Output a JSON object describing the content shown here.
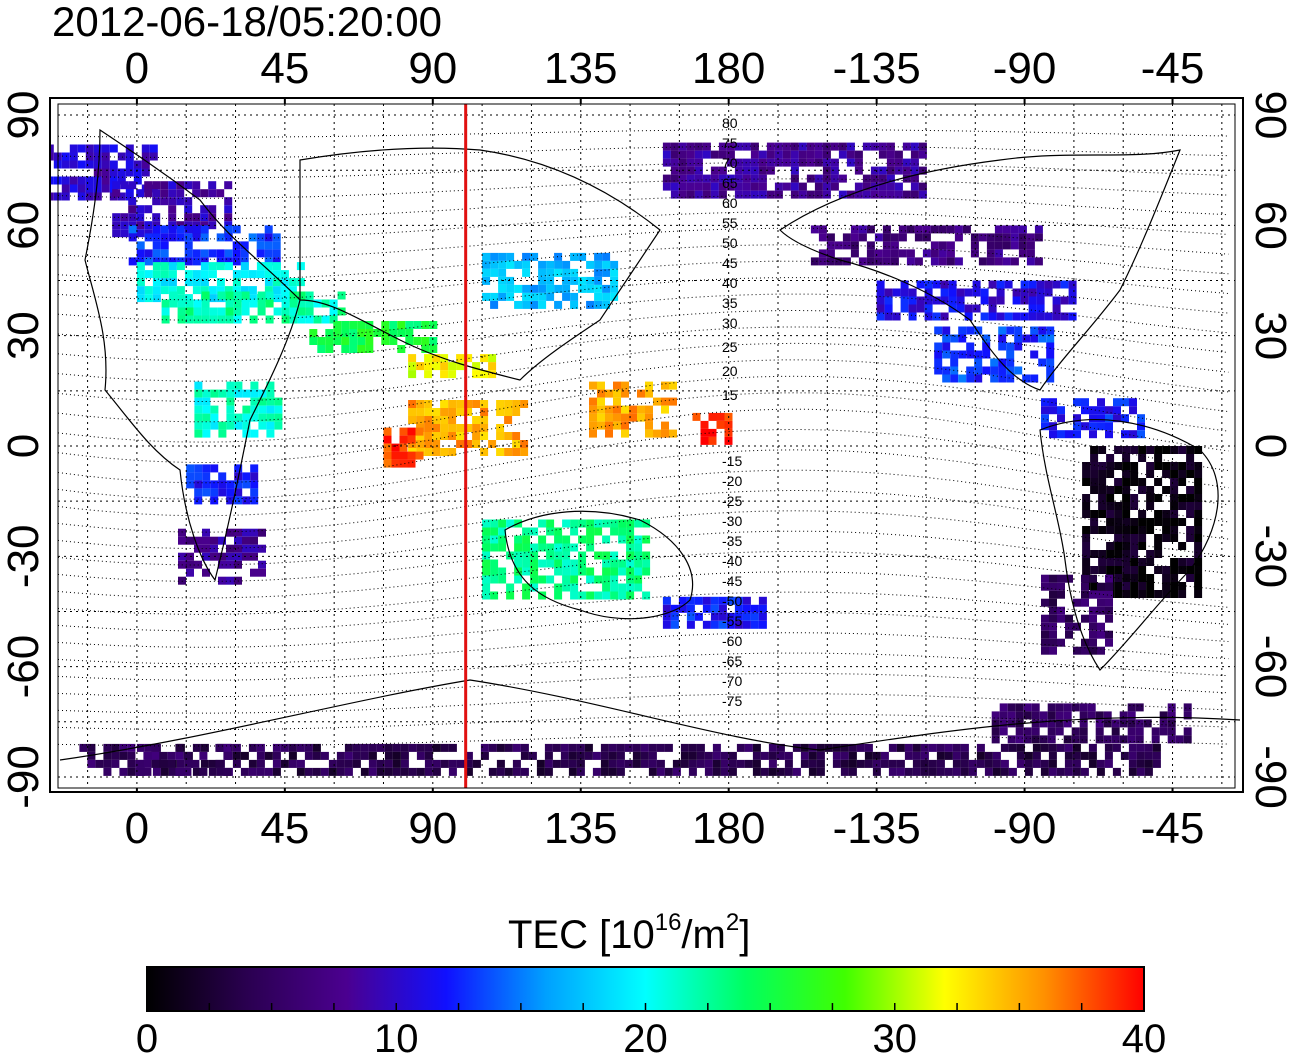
{
  "title": "2012-06-18/05:20:00",
  "lon_ticks": [
    "0",
    "45",
    "90",
    "135",
    "180",
    "-135",
    "-90",
    "-45"
  ],
  "lat_ticks": [
    "90",
    "60",
    "30",
    "0",
    "-30",
    "-60",
    "-90"
  ],
  "lon_tick_values": [
    0,
    45,
    90,
    135,
    180,
    225,
    270,
    315
  ],
  "lat_tick_values": [
    90,
    60,
    30,
    0,
    -30,
    -60,
    -90
  ],
  "map_extent": {
    "lon_min": -24,
    "lon_max": 334,
    "lat_min": -93,
    "lat_max": 93
  },
  "meridian_marker": {
    "lon": 100,
    "color": "#e01010"
  },
  "contour_labels_north": [
    "80",
    "75",
    "70",
    "65",
    "60",
    "55",
    "50",
    "45",
    "40",
    "35",
    "30",
    "25",
    "20",
    "15"
  ],
  "contour_labels_south": [
    "-15",
    "-20",
    "-25",
    "-30",
    "-35",
    "-40",
    "-45",
    "-50",
    "-55",
    "-60",
    "-65",
    "-70",
    "-75"
  ],
  "colorbar": {
    "label_main": "TEC  [10",
    "label_sup1": "16",
    "label_mid": "/m",
    "label_sup2": "2",
    "label_end": "]",
    "min": 0,
    "max": 40,
    "tick_labels": [
      "0",
      "10",
      "20",
      "30",
      "40"
    ],
    "stops": [
      "#000000",
      "#2a0050",
      "#4b0090",
      "#1010ff",
      "#00a0ff",
      "#00ffff",
      "#00ff60",
      "#40ff00",
      "#ffff00",
      "#ff9000",
      "#ff0000"
    ]
  },
  "tec_regions": [
    {
      "lon": -15,
      "lat": 75,
      "w": 40,
      "h": 14,
      "tec": 10
    },
    {
      "lon": 10,
      "lat": 65,
      "w": 35,
      "h": 14,
      "tec": 9
    },
    {
      "lon": 20,
      "lat": 55,
      "w": 45,
      "h": 10,
      "tec": 13
    },
    {
      "lon": 25,
      "lat": 45,
      "w": 50,
      "h": 10,
      "tec": 20
    },
    {
      "lon": 35,
      "lat": 38,
      "w": 55,
      "h": 8,
      "tec": 22
    },
    {
      "lon": 70,
      "lat": 30,
      "w": 40,
      "h": 8,
      "tec": 25
    },
    {
      "lon": 95,
      "lat": 22,
      "w": 25,
      "h": 6,
      "tec": 32
    },
    {
      "lon": 30,
      "lat": 10,
      "w": 25,
      "h": 15,
      "tec": 21
    },
    {
      "lon": 25,
      "lat": -10,
      "w": 20,
      "h": 10,
      "tec": 12
    },
    {
      "lon": 25,
      "lat": -30,
      "w": 25,
      "h": 15,
      "tec": 8
    },
    {
      "lon": 100,
      "lat": 5,
      "w": 35,
      "h": 15,
      "tec": 35
    },
    {
      "lon": 80,
      "lat": 0,
      "w": 10,
      "h": 10,
      "tec": 38
    },
    {
      "lon": 150,
      "lat": 10,
      "w": 25,
      "h": 15,
      "tec": 35
    },
    {
      "lon": 175,
      "lat": 5,
      "w": 12,
      "h": 8,
      "tec": 39
    },
    {
      "lon": 130,
      "lat": -30,
      "w": 50,
      "h": 20,
      "tec": 23
    },
    {
      "lon": 175,
      "lat": -45,
      "w": 30,
      "h": 8,
      "tec": 12
    },
    {
      "lon": 125,
      "lat": 45,
      "w": 40,
      "h": 15,
      "tec": 17
    },
    {
      "lon": 200,
      "lat": 75,
      "w": 80,
      "h": 15,
      "tec": 8
    },
    {
      "lon": 240,
      "lat": 55,
      "w": 70,
      "h": 10,
      "tec": 7
    },
    {
      "lon": 255,
      "lat": 40,
      "w": 60,
      "h": 10,
      "tec": 11
    },
    {
      "lon": 260,
      "lat": 25,
      "w": 35,
      "h": 15,
      "tec": 13
    },
    {
      "lon": 290,
      "lat": 8,
      "w": 30,
      "h": 10,
      "tec": 12
    },
    {
      "lon": 305,
      "lat": -20,
      "w": 35,
      "h": 40,
      "tec": 1
    },
    {
      "lon": 285,
      "lat": -45,
      "w": 20,
      "h": 20,
      "tec": 5
    },
    {
      "lon": 155,
      "lat": -85,
      "w": 310,
      "h": 8,
      "tec": 4
    },
    {
      "lon": 5,
      "lat": -85,
      "w": 45,
      "h": 8,
      "tec": 5
    },
    {
      "lon": 290,
      "lat": -75,
      "w": 60,
      "h": 10,
      "tec": 5
    }
  ]
}
